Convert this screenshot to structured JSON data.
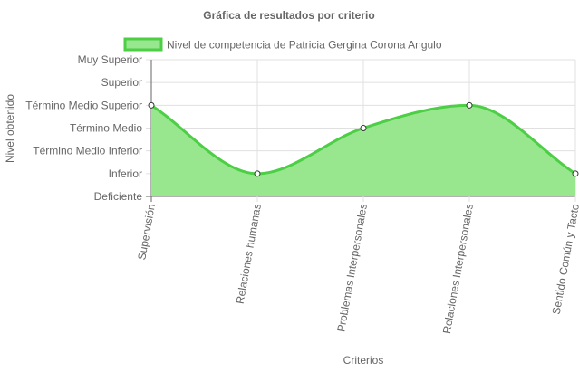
{
  "chart_data": {
    "type": "area",
    "title": "Gráfica de resultados por criterio",
    "xlabel": "Criterios",
    "ylabel": "Nivel obtenido",
    "categories": [
      "Supervisión",
      "Relaciones humanas",
      "Problemas Interpersonales",
      "Relaciones Interpersonales",
      "Sentido Común y Tacto"
    ],
    "y_levels": [
      "Deficiente",
      "Inferior",
      "Término Medio Inferior",
      "Término Medio",
      "Término Medio Superior",
      "Superior",
      "Muy Superior"
    ],
    "series": [
      {
        "name": "Nivel de competencia de Patricia Gergina Corona Angulo",
        "values": [
          4,
          1,
          3,
          4,
          1
        ]
      }
    ],
    "ylim": [
      0,
      6
    ],
    "grid": true,
    "legend_position": "top",
    "colors": {
      "fill": "#98e78f",
      "line": "#4cce45",
      "point_fill": "#ffffff",
      "point_stroke": "#333333",
      "grid": "#e0e0e0",
      "axis": "#666666"
    }
  }
}
